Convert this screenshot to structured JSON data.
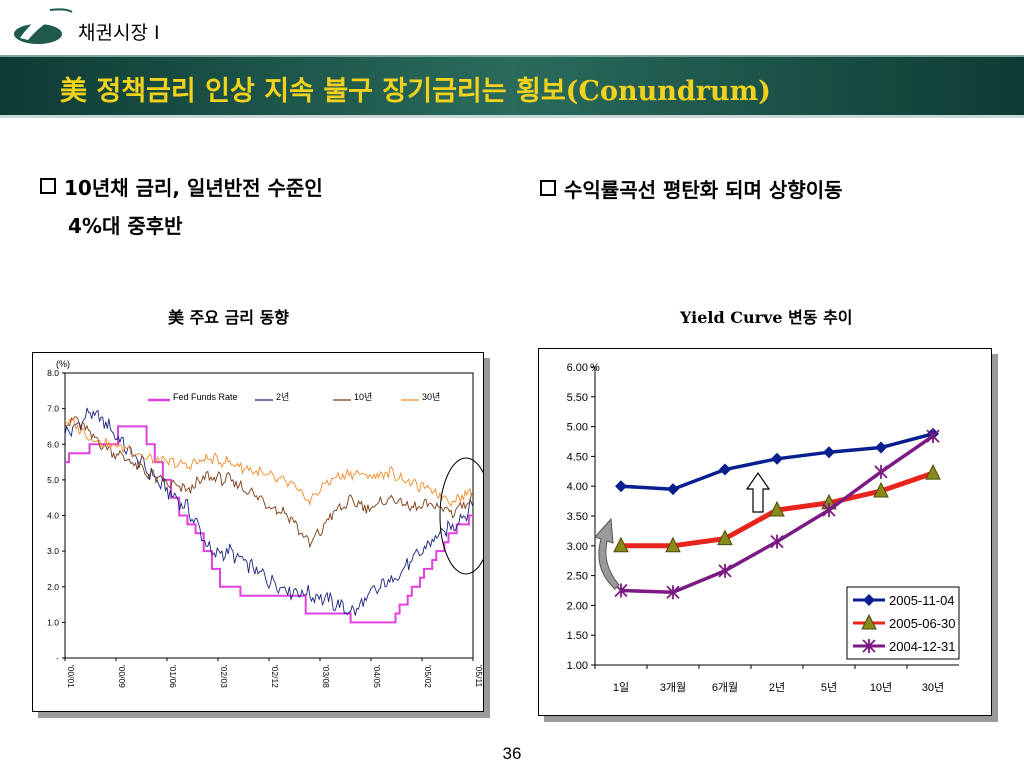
{
  "header": {
    "section_title": "채권시장 I",
    "main_title": "美 정책금리 인상 지속 불구 장기금리는 횡보(Conundrum)"
  },
  "bullets": {
    "left_line1": "10년채 금리, 일년반전 수준인",
    "left_line2": "4%대 중후반",
    "right": "수익률곡선 평탄화 되며 상향이동"
  },
  "left_chart_title": "美  주요  금리  동향",
  "right_chart_title": "Yield Curve  변동  추이",
  "page_number": "36",
  "chart_data": [
    {
      "type": "line",
      "unit_label": "(%)",
      "ylim": [
        0,
        8
      ],
      "y_ticks": [
        "-",
        "1.0",
        "2.0",
        "3.0",
        "4.0",
        "5.0",
        "6.0",
        "7.0",
        "8.0"
      ],
      "x_ticks": [
        "'00/01",
        "'00/09",
        "'01/06",
        "'02/03",
        "'02/12",
        "'03/08",
        "'04/05",
        "'05/02",
        "'05/11"
      ],
      "legend_position": "top",
      "series": [
        {
          "name": "Fed Funds Rate",
          "color": "#e040e0",
          "step": true,
          "x": [
            0,
            0.01,
            0.06,
            0.13,
            0.18,
            0.2,
            0.22,
            0.24,
            0.26,
            0.28,
            0.3,
            0.32,
            0.34,
            0.36,
            0.38,
            0.43,
            0.59,
            0.7,
            0.78,
            0.81,
            0.82,
            0.84,
            0.85,
            0.87,
            0.88,
            0.9,
            0.91,
            0.93,
            0.94,
            0.96,
            0.97,
            0.99,
            1.0
          ],
          "y": [
            5.5,
            5.75,
            6.0,
            6.5,
            6.5,
            6.0,
            5.5,
            5.0,
            4.5,
            4.0,
            3.75,
            3.5,
            3.0,
            2.5,
            2.0,
            1.75,
            1.25,
            1.0,
            1.0,
            1.25,
            1.5,
            1.75,
            2.0,
            2.25,
            2.5,
            2.75,
            3.0,
            3.25,
            3.5,
            3.75,
            3.75,
            4.0,
            4.0
          ]
        },
        {
          "name": "2년",
          "color": "#1a237e",
          "x": [
            0,
            0.03,
            0.06,
            0.1,
            0.15,
            0.2,
            0.25,
            0.3,
            0.33,
            0.36,
            0.4,
            0.45,
            0.5,
            0.55,
            0.6,
            0.65,
            0.7,
            0.72,
            0.75,
            0.8,
            0.85,
            0.9,
            0.95,
            1.0
          ],
          "y": [
            6.3,
            6.5,
            6.9,
            6.6,
            5.9,
            5.3,
            4.7,
            4.2,
            3.6,
            2.9,
            3.0,
            2.6,
            2.2,
            1.9,
            1.8,
            1.6,
            1.3,
            1.4,
            1.8,
            2.2,
            2.7,
            3.3,
            3.7,
            4.3
          ]
        },
        {
          "name": "10년",
          "color": "#7b3b12",
          "x": [
            0,
            0.03,
            0.06,
            0.1,
            0.15,
            0.2,
            0.25,
            0.3,
            0.35,
            0.4,
            0.45,
            0.5,
            0.55,
            0.58,
            0.6,
            0.63,
            0.65,
            0.7,
            0.75,
            0.8,
            0.85,
            0.9,
            0.95,
            1.0
          ],
          "y": [
            6.6,
            6.7,
            6.3,
            5.9,
            5.6,
            5.2,
            4.9,
            4.7,
            5.1,
            5.0,
            4.7,
            4.3,
            4.0,
            3.5,
            3.2,
            3.6,
            4.0,
            4.4,
            4.2,
            4.5,
            4.2,
            4.3,
            4.1,
            4.5
          ]
        },
        {
          "name": "30년",
          "color": "#f08a2a",
          "x": [
            0,
            0.03,
            0.06,
            0.1,
            0.15,
            0.2,
            0.25,
            0.3,
            0.35,
            0.4,
            0.45,
            0.5,
            0.55,
            0.58,
            0.6,
            0.63,
            0.65,
            0.7,
            0.75,
            0.8,
            0.85,
            0.9,
            0.95,
            1.0
          ],
          "y": [
            6.7,
            6.5,
            6.2,
            6.0,
            5.9,
            5.6,
            5.5,
            5.4,
            5.6,
            5.5,
            5.3,
            5.1,
            4.9,
            4.6,
            4.4,
            4.8,
            5.0,
            5.2,
            5.1,
            5.2,
            4.9,
            4.7,
            4.4,
            4.7
          ]
        }
      ]
    },
    {
      "type": "line",
      "ylim": [
        1.0,
        6.0
      ],
      "y_ticks": [
        "1.00",
        "1.50",
        "2.00",
        "2.50",
        "3.00",
        "3.50",
        "4.00",
        "4.50",
        "5.00",
        "5.50",
        "6.00"
      ],
      "unit_label": "%",
      "categories": [
        "1일",
        "3개월",
        "6개월",
        "2년",
        "5년",
        "10년",
        "30년"
      ],
      "legend_position": "bottom-right",
      "series": [
        {
          "name": "2005-11-04",
          "color": "#0a1f8f",
          "marker": "diamond",
          "values": [
            4.0,
            3.95,
            4.28,
            4.46,
            4.57,
            4.65,
            4.88
          ]
        },
        {
          "name": "2005-06-30",
          "color": "#e8241c",
          "marker": "triangle",
          "values": [
            3.0,
            3.0,
            3.12,
            3.6,
            3.72,
            3.92,
            4.22
          ]
        },
        {
          "name": "2004-12-31",
          "color": "#7b1a82",
          "marker": "asterisk",
          "values": [
            2.25,
            2.22,
            2.58,
            3.07,
            3.6,
            4.24,
            4.84
          ]
        }
      ]
    }
  ]
}
